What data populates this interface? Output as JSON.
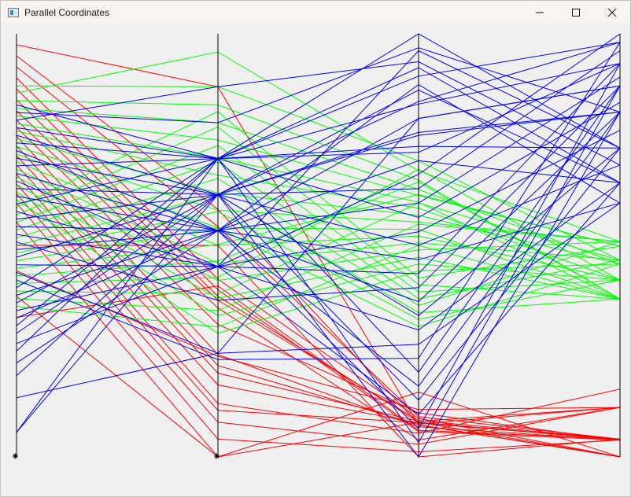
{
  "window": {
    "title": "Parallel Coordinates",
    "controls": {
      "minimize": "—",
      "maximize": "☐",
      "close": "✕"
    }
  },
  "axis_markers": [
    "⁕",
    "⁕"
  ],
  "chart_data": {
    "type": "parallel-coordinates",
    "title": "",
    "axes": [
      "",
      "",
      "",
      ""
    ],
    "range": [
      0,
      1
    ],
    "grid": false,
    "colors": {
      "red": "#ff0000",
      "green": "#00ff00",
      "blue": "#0000ff",
      "axis": "#000000"
    },
    "series": [
      {
        "color": "red",
        "lines": [
          [
            0.974,
            0.875,
            0.075,
            0.0
          ],
          [
            0.948,
            0.585,
            0.078,
            0.117
          ],
          [
            0.922,
            0.544,
            0.095,
            0.042
          ],
          [
            0.896,
            0.42,
            0.091,
            0.0
          ],
          [
            0.87,
            0.395,
            0.06,
            0.04
          ],
          [
            0.844,
            0.38,
            0.082,
            0.0
          ],
          [
            0.818,
            0.37,
            0.086,
            0.042
          ],
          [
            0.796,
            0.352,
            0.04,
            0.117
          ],
          [
            0.779,
            0.313,
            0.104,
            0.039
          ],
          [
            0.758,
            0.242,
            0.071,
            0.04
          ],
          [
            0.735,
            0.216,
            0.076,
            0.0
          ],
          [
            0.712,
            0.198,
            0.084,
            0.117
          ],
          [
            0.69,
            0.17,
            0.08,
            0.042
          ],
          [
            0.668,
            0.126,
            0.056,
            0.16
          ],
          [
            0.645,
            0.11,
            0.081,
            0.042
          ],
          [
            0.622,
            0.082,
            0.03,
            0.117
          ],
          [
            0.6,
            0.042,
            0.012,
            0.04
          ],
          [
            0.555,
            0.0,
            0.153,
            0.0
          ],
          [
            0.5,
            0.5,
            0.0,
            0.042
          ],
          [
            0.44,
            0.238,
            0.112,
            0.117
          ],
          [
            0.38,
            0.0,
            0.082,
            0.04
          ],
          [
            0.33,
            0.404,
            0.063,
            0.042
          ]
        ]
      },
      {
        "color": "green",
        "lines": [
          [
            0.877,
            0.875,
            0.7,
            0.465
          ],
          [
            0.86,
            0.957,
            0.676,
            0.509
          ],
          [
            0.842,
            0.832,
            0.654,
            0.373
          ],
          [
            0.824,
            0.79,
            0.632,
            0.456
          ],
          [
            0.806,
            0.749,
            0.618,
            0.498
          ],
          [
            0.788,
            0.707,
            0.602,
            0.373
          ],
          [
            0.77,
            0.666,
            0.588,
            0.418
          ],
          [
            0.752,
            0.624,
            0.571,
            0.456
          ],
          [
            0.734,
            0.583,
            0.555,
            0.509
          ],
          [
            0.716,
            0.541,
            0.538,
            0.373
          ],
          [
            0.698,
            0.5,
            0.522,
            0.418
          ],
          [
            0.68,
            0.458,
            0.506,
            0.465
          ],
          [
            0.662,
            0.417,
            0.489,
            0.509
          ],
          [
            0.644,
            0.375,
            0.472,
            0.373
          ],
          [
            0.626,
            0.334,
            0.456,
            0.418
          ],
          [
            0.608,
            0.292,
            0.44,
            0.456
          ],
          [
            0.59,
            0.816,
            0.423,
            0.498
          ],
          [
            0.572,
            0.78,
            0.407,
            0.373
          ],
          [
            0.554,
            0.736,
            0.39,
            0.418
          ],
          [
            0.536,
            0.697,
            0.374,
            0.465
          ],
          [
            0.518,
            0.658,
            0.358,
            0.509
          ],
          [
            0.5,
            0.619,
            0.341,
            0.373
          ],
          [
            0.482,
            0.58,
            0.325,
            0.418
          ],
          [
            0.464,
            0.541,
            0.308,
            0.456
          ],
          [
            0.446,
            0.502,
            0.62,
            0.498
          ],
          [
            0.428,
            0.463,
            0.65,
            0.373
          ],
          [
            0.41,
            0.424,
            0.68,
            0.418
          ],
          [
            0.392,
            0.385,
            0.6,
            0.465
          ],
          [
            0.374,
            0.346,
            0.55,
            0.509
          ],
          [
            0.356,
            0.307,
            0.5,
            0.373
          ]
        ]
      },
      {
        "color": "blue",
        "lines": [
          [
            0.832,
            0.705,
            1.0,
            0.73
          ],
          [
            0.814,
            0.79,
            0.967,
            0.815
          ],
          [
            0.796,
            0.875,
            0.934,
            0.69
          ],
          [
            0.778,
            0.705,
            0.9,
            0.98
          ],
          [
            0.76,
            0.62,
            0.867,
            0.648
          ],
          [
            0.742,
            0.705,
            0.834,
            0.93
          ],
          [
            0.724,
            0.535,
            0.8,
            0.877
          ],
          [
            0.706,
            0.62,
            0.767,
            0.815
          ],
          [
            0.688,
            0.705,
            0.734,
            0.73
          ],
          [
            0.67,
            0.535,
            0.7,
            0.648
          ],
          [
            0.652,
            0.45,
            0.668,
            1.0
          ],
          [
            0.634,
            0.62,
            0.634,
            0.96
          ],
          [
            0.616,
            0.535,
            0.6,
            0.898
          ],
          [
            0.598,
            0.705,
            0.566,
            0.838
          ],
          [
            0.58,
            0.45,
            0.532,
            0.772
          ],
          [
            0.562,
            0.62,
            0.5,
            0.69
          ],
          [
            0.544,
            0.535,
            0.466,
            0.6
          ],
          [
            0.526,
            0.45,
            0.433,
            0.93
          ],
          [
            0.508,
            0.37,
            0.4,
            0.877
          ],
          [
            0.49,
            0.535,
            0.367,
            0.815
          ],
          [
            0.472,
            0.62,
            0.334,
            0.73
          ],
          [
            0.454,
            0.45,
            0.3,
            0.648
          ],
          [
            0.436,
            0.245,
            0.266,
            0.6
          ],
          [
            0.418,
            0.23,
            0.233,
            0.98
          ],
          [
            0.4,
            0.705,
            0.2,
            0.877
          ],
          [
            0.382,
            0.535,
            0.167,
            0.815
          ],
          [
            0.364,
            0.62,
            0.134,
            0.73
          ],
          [
            0.346,
            0.45,
            0.1,
            0.648
          ],
          [
            0.328,
            0.535,
            0.067,
            0.93
          ],
          [
            0.31,
            0.705,
            0.034,
            0.877
          ],
          [
            0.292,
            0.62,
            0.0,
            0.815
          ],
          [
            0.268,
            0.45,
            0.96,
            0.73
          ],
          [
            0.25,
            0.705,
            0.92,
            0.648
          ],
          [
            0.222,
            0.535,
            0.88,
            0.6
          ],
          [
            0.192,
            0.62,
            0.84,
            0.98
          ],
          [
            0.14,
            0.245,
            0.8,
            0.877
          ],
          [
            0.058,
            0.62,
            0.76,
            0.815
          ],
          [
            0.058,
            0.705,
            0.72,
            0.93
          ]
        ]
      }
    ]
  }
}
